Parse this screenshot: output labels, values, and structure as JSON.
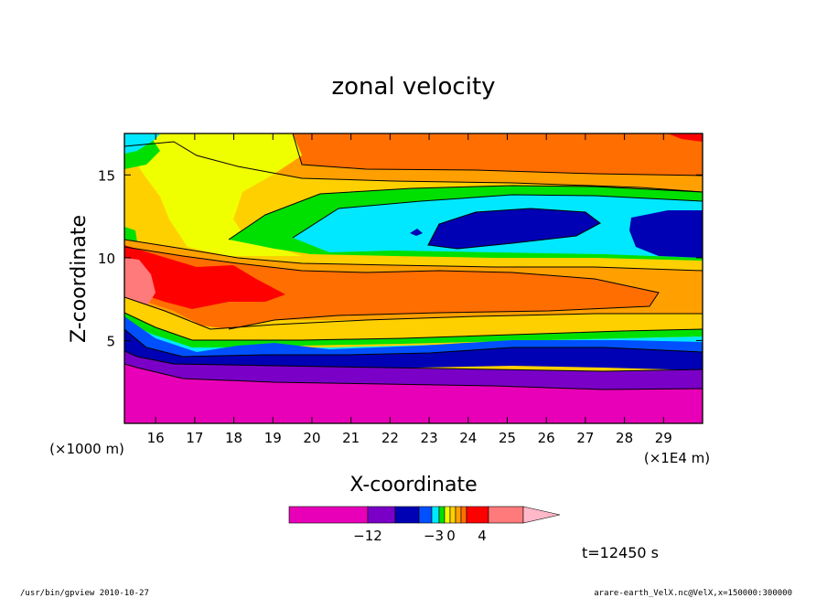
{
  "chart_data": {
    "type": "heatmap",
    "title": "zonal velocity",
    "xlabel": "X-coordinate",
    "ylabel": "Z-coordinate",
    "x_unit": "(×1E4 m)",
    "y_unit": "(×1000 m)",
    "xlim": [
      15.2,
      30.0
    ],
    "ylim": [
      0,
      17.5
    ],
    "x_ticks": [
      "16",
      "17",
      "18",
      "19",
      "20",
      "21",
      "22",
      "23",
      "24",
      "25",
      "26",
      "27",
      "28",
      "29"
    ],
    "y_ticks": [
      "5",
      "10",
      "15"
    ],
    "colorbar": {
      "tick_labels": [
        "−12",
        "−3",
        "0",
        "4"
      ],
      "colors": [
        "#e800b8",
        "#7a00c8",
        "#0000b4",
        "#0050ff",
        "#00e8ff",
        "#00e000",
        "#f0ff00",
        "#ffd000",
        "#ffa000",
        "#ff6e00",
        "#ff0000",
        "#ff7a7a",
        "#ffb8c8"
      ]
    },
    "bands": [
      {
        "level": 0,
        "color": "#e800b8"
      },
      {
        "level": 1,
        "color": "#7a00c8"
      },
      {
        "level": 2,
        "color": "#0000b4"
      },
      {
        "level": 3,
        "color": "#0050ff"
      },
      {
        "level": 4,
        "color": "#00e8ff"
      },
      {
        "level": 5,
        "color": "#00e000"
      },
      {
        "level": 6,
        "color": "#f0ff00"
      },
      {
        "level": 7,
        "color": "#ffd000"
      },
      {
        "level": 8,
        "color": "#ffa000"
      },
      {
        "level": 9,
        "color": "#ff6e00"
      },
      {
        "level": 10,
        "color": "#ff0000"
      },
      {
        "level": 11,
        "color": "#ff7a7a"
      }
    ]
  },
  "annotations": {
    "time": "t=12450 s",
    "footer_left": "/usr/bin/gpview  2010-10-27",
    "footer_right": "arare-earth_VelX.nc@VelX,x=150000:300000"
  }
}
